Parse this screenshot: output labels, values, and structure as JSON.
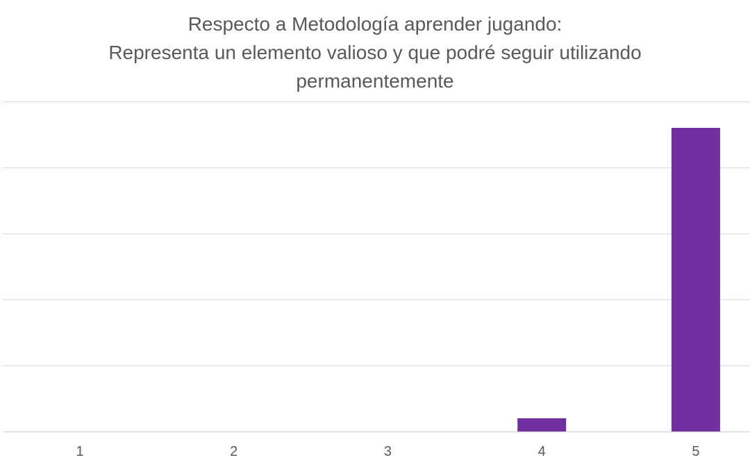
{
  "chart_data": {
    "type": "bar",
    "title": [
      "Respecto a Metodología aprender jugando:",
      "Representa un elemento valioso y que podré seguir utilizando",
      "permanentemente"
    ],
    "categories": [
      "1",
      "2",
      "3",
      "4",
      "5"
    ],
    "values": [
      0,
      0,
      0,
      1,
      23
    ],
    "ylim": [
      0,
      25
    ],
    "grid": true,
    "legend": "none",
    "colors": {
      "bar": "#7030a0",
      "grid": "#d9d9d9",
      "text": "#595959"
    }
  }
}
